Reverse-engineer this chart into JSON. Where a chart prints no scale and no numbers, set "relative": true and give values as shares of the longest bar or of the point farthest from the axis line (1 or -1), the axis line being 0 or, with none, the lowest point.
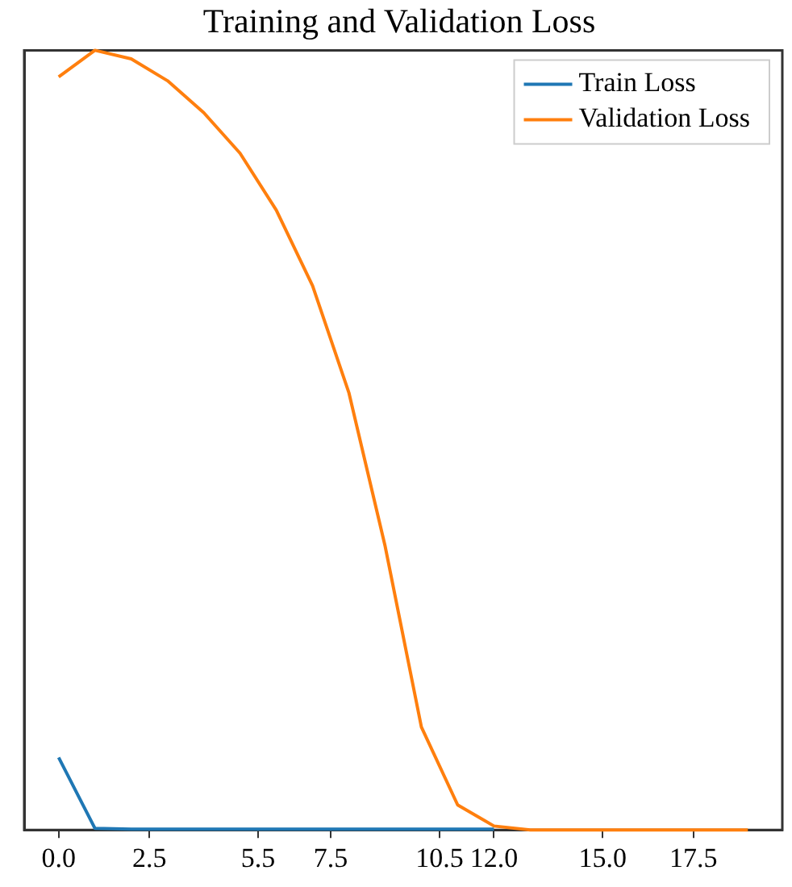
{
  "chart_data": {
    "type": "line",
    "title": "Training and Validation Loss",
    "relative": true,
    "x": [
      0,
      1,
      2,
      3,
      4,
      5,
      6,
      7,
      8,
      9,
      10,
      11,
      12,
      13,
      14,
      15,
      16,
      17,
      18,
      19
    ],
    "xlim": [
      -0.95,
      19.95
    ],
    "xticks": [
      {
        "value": 0,
        "label": "0.0"
      },
      2.5,
      5.5,
      7.5,
      10.5,
      {
        "value": 12,
        "label": "12.0"
      },
      {
        "value": 15,
        "label": "15.0"
      },
      17.5
    ],
    "series": [
      {
        "name": "Train Loss",
        "color": "#1f77b4",
        "values": [
          0.093,
          0.002,
          0.001,
          0.001,
          0.001,
          0.001,
          0.001,
          0.001,
          0.001,
          0.001,
          0.001,
          0.001,
          0.001,
          null,
          null,
          null,
          null,
          null,
          null,
          null
        ]
      },
      {
        "name": "Validation Loss",
        "color": "#ff7f0e",
        "values": [
          0.966,
          1,
          0.989,
          0.961,
          0.92,
          0.868,
          0.795,
          0.698,
          0.561,
          0.364,
          0.132,
          0.032,
          0.005,
          0,
          0,
          0,
          0,
          0,
          0,
          0
        ]
      }
    ],
    "legend": "top right",
    "grid": false,
    "tick_labels": "x",
    "marker": "none",
    "line_style": "solid"
  }
}
